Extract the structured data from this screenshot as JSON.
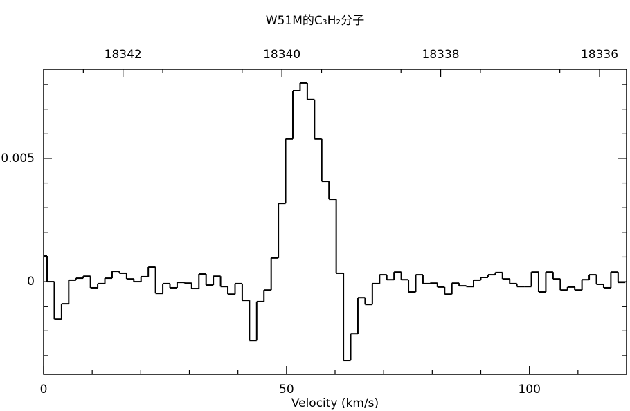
{
  "chart_data": {
    "type": "step",
    "title": "W51M的C₃H₂分子",
    "xlabel": "Velocity (km/s)",
    "color": "#000000",
    "xlim": [
      0,
      120
    ],
    "xticks": [
      0,
      50,
      100
    ],
    "xminorticks": [
      10,
      20,
      30,
      40,
      60,
      70,
      80,
      90,
      110
    ],
    "x2lim": [
      18343.0,
      18335.66
    ],
    "x2ticks": [
      18342,
      18340,
      18338,
      18336
    ],
    "x2minorticks": [
      18342.5,
      18341.5,
      18340.5,
      18339.5,
      18338.5,
      18337.5,
      18336.5
    ],
    "ylim": [
      -0.00376,
      0.00862
    ],
    "yticks": [
      0,
      0.005
    ],
    "yminorticks": [
      -0.003,
      -0.002,
      -0.001,
      0.001,
      0.002,
      0.003,
      0.004,
      0.006,
      0.007,
      0.008
    ],
    "x": [
      -0.03,
      1.46,
      2.95,
      4.43,
      5.92,
      7.41,
      8.9,
      10.39,
      11.87,
      13.36,
      14.85,
      16.34,
      17.83,
      19.31,
      20.8,
      22.29,
      23.78,
      25.27,
      26.75,
      28.24,
      29.73,
      31.22,
      32.71,
      34.19,
      35.68,
      37.17,
      38.66,
      40.15,
      41.63,
      43.12,
      44.61,
      46.1,
      47.59,
      49.07,
      50.56,
      52.05,
      53.54,
      55.03,
      56.51,
      58.0,
      59.49,
      60.98,
      62.47,
      63.95,
      65.44,
      66.93,
      68.42,
      69.91,
      71.39,
      72.88,
      74.37,
      75.86,
      77.35,
      78.83,
      80.32,
      81.81,
      83.3,
      84.79,
      86.27,
      87.76,
      89.25,
      90.74,
      92.23,
      93.71,
      95.2,
      96.69,
      98.18,
      99.67,
      101.15,
      102.64,
      104.13,
      105.62,
      107.11,
      108.59,
      110.08,
      111.57,
      113.06,
      114.55,
      116.03,
      117.52,
      119.01
    ],
    "values": [
      0.00104,
      0,
      -0.00152,
      -0.0009,
      6e-05,
      0.00014,
      0.00022,
      -0.00025,
      -8e-05,
      0.00014,
      0.00042,
      0.00034,
      0.00011,
      0,
      0.0002,
      0.00059,
      -0.00048,
      -8e-05,
      -0.00025,
      -3e-05,
      -6e-05,
      -0.00028,
      0.00031,
      -0.00014,
      0.00022,
      -0.0002,
      -0.00051,
      -8e-05,
      -0.00076,
      -0.00239,
      -0.00081,
      -0.00034,
      0.00096,
      0.00317,
      0.00579,
      0.00775,
      0.00806,
      0.00739,
      0.00579,
      0.00407,
      0.00334,
      0.00034,
      -0.0032,
      -0.00211,
      -0.00065,
      -0.00093,
      -8e-05,
      0.00028,
      8e-05,
      0.00039,
      8e-05,
      -0.00042,
      0.00028,
      -8e-05,
      -6e-05,
      -0.00022,
      -0.00051,
      -6e-05,
      -0.00017,
      -0.0002,
      6e-05,
      0.00017,
      0.00028,
      0.00037,
      0.00011,
      -8e-05,
      -0.0002,
      -0.0002,
      0.00039,
      -0.00042,
      0.00039,
      0.00011,
      -0.00034,
      -0.00022,
      -0.00034,
      8e-05,
      0.00028,
      -0.00011,
      -0.00025,
      0.00039,
      -3e-05
    ]
  }
}
